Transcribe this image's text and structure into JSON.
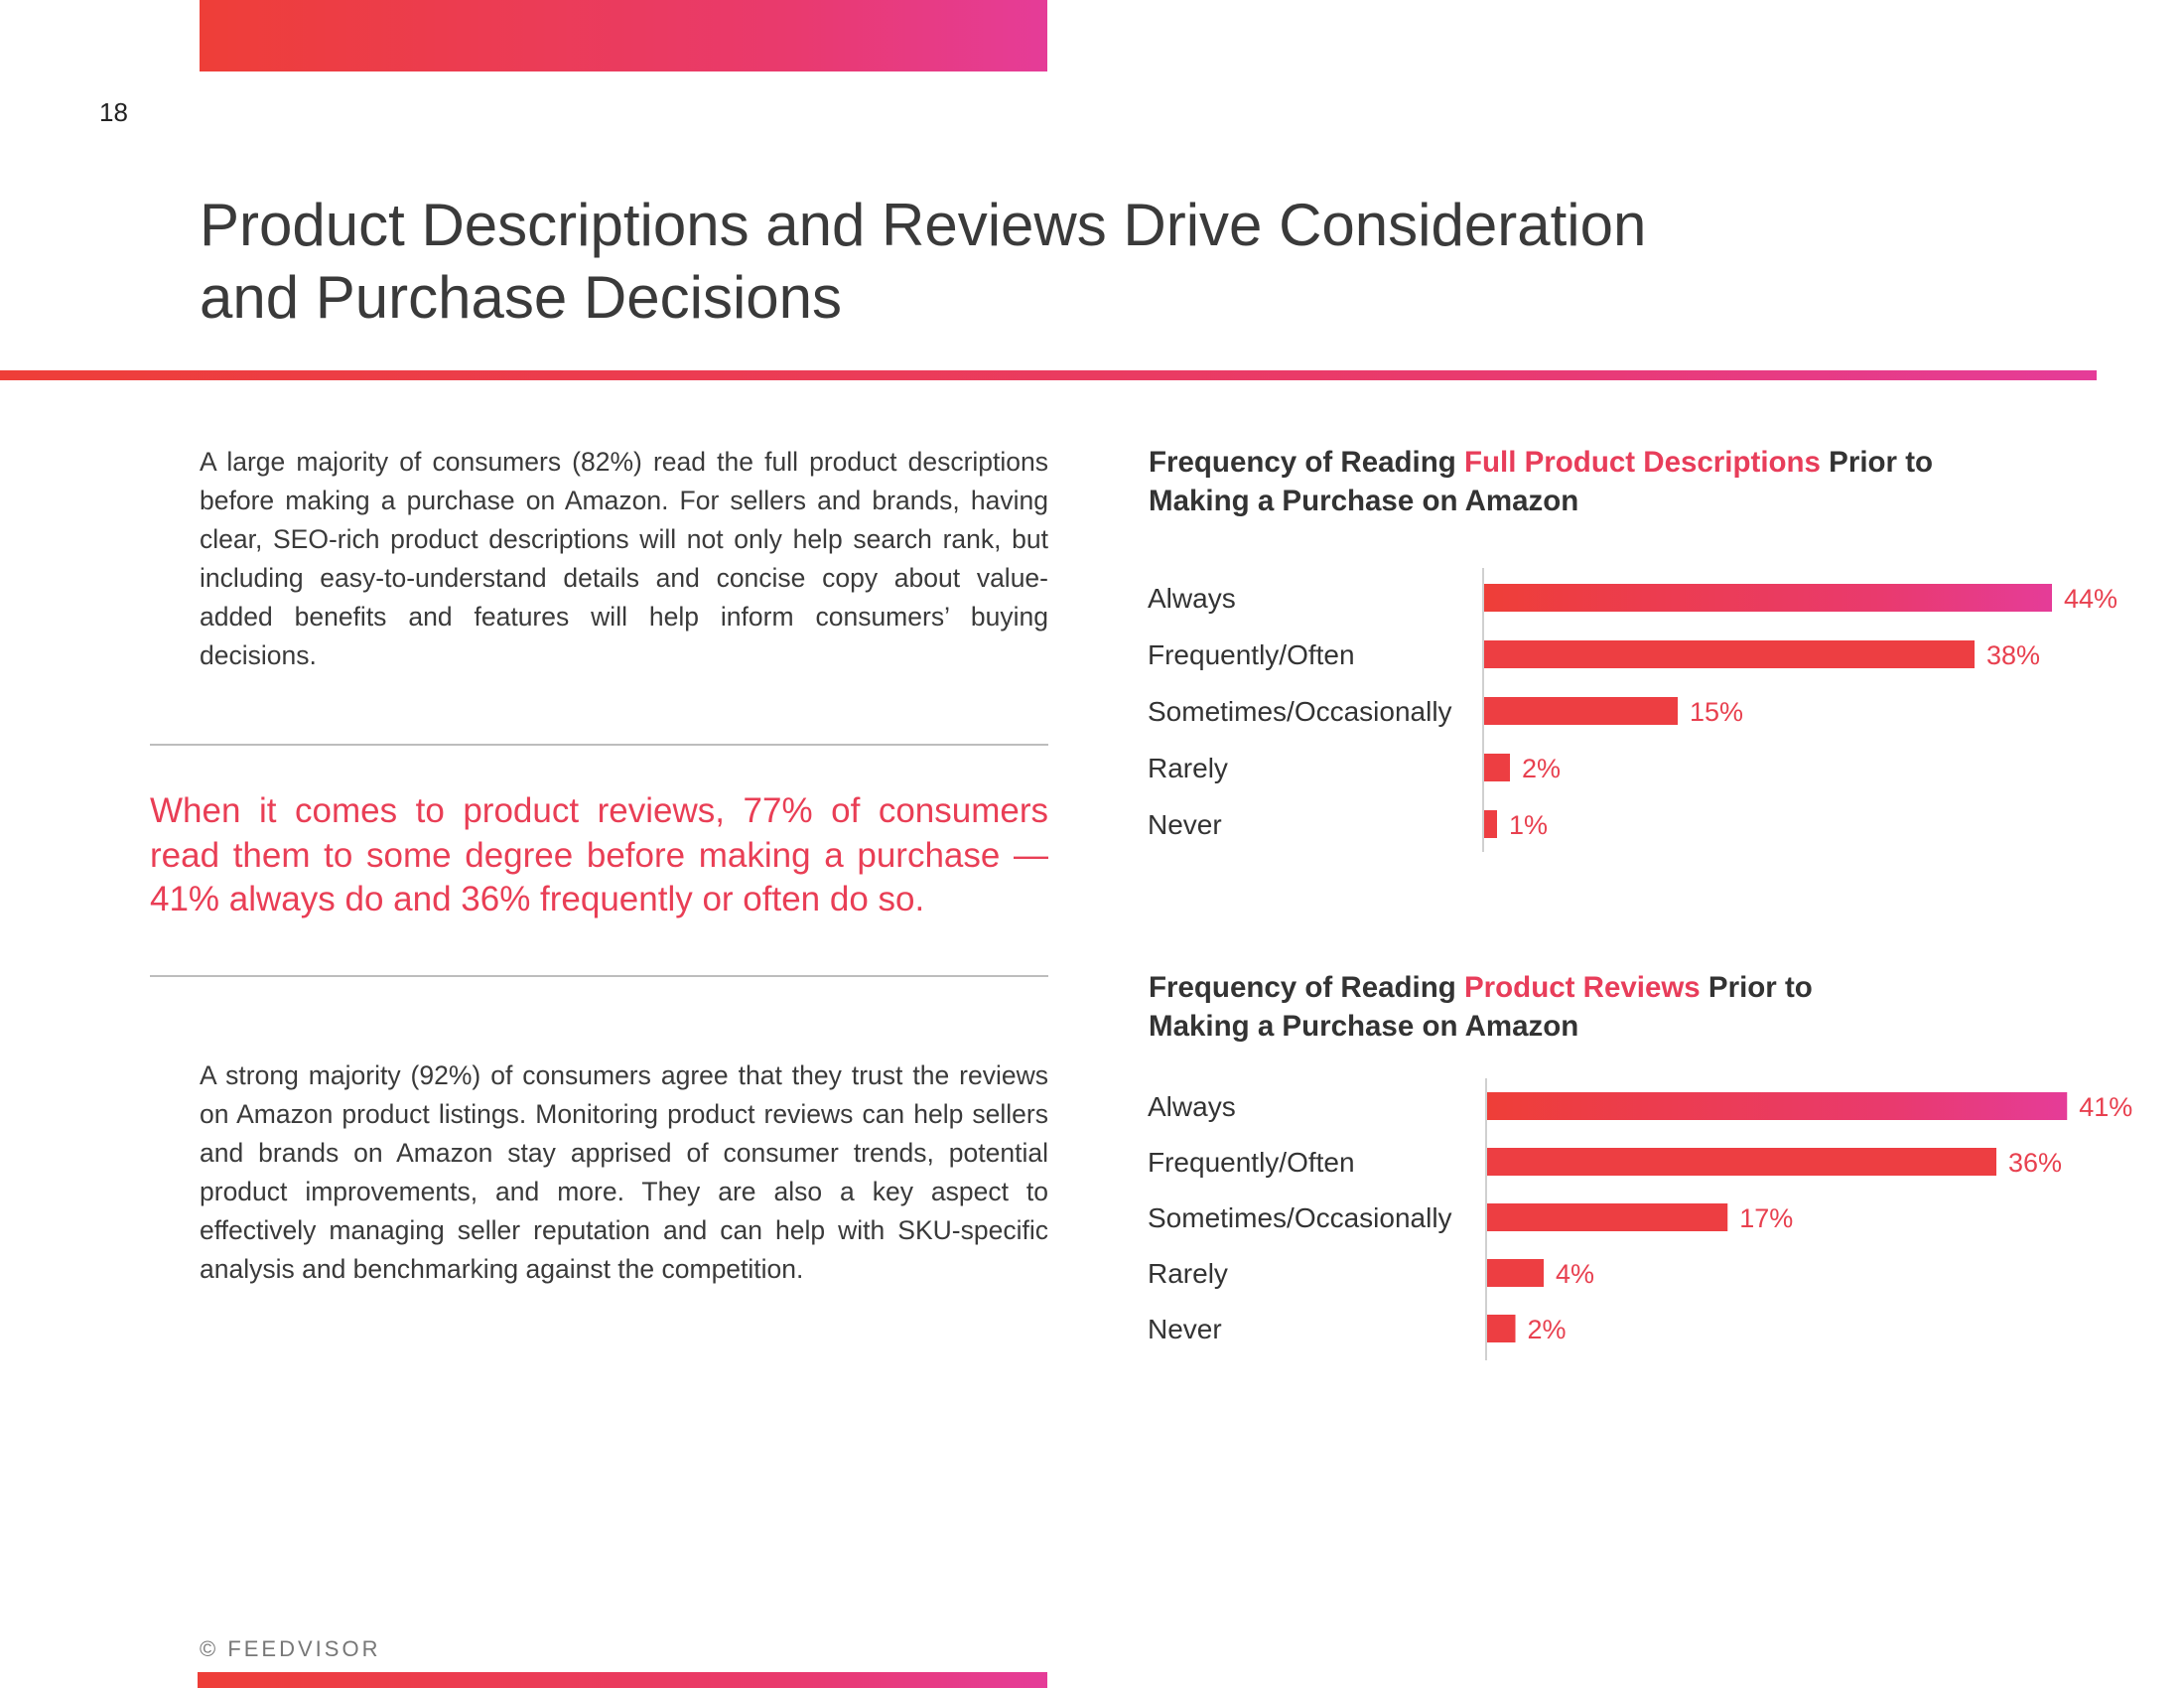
{
  "page": {
    "number": "18",
    "title_line1": "Product Descriptions and Reviews Drive Consideration",
    "title_line2": "and Purchase Decisions",
    "intro": "A large majority of consumers (82%) read the full product descriptions before making a purchase on Amazon. For sellers and brands, having clear, SEO-rich product descriptions will not only help search rank, but including easy-to-understand details and concise copy about value-added benefits and features will help inform consumers’ buying decisions.",
    "pull_quote": "When it comes to product reviews, 77% of consumers read them to some degree before making a purchase — 41% always do and 36% frequently or often do so.",
    "trust": "A strong majority (92%) of consumers agree that they trust the reviews on Amazon product listings. Monitoring product reviews can help sellers and brands on Amazon stay apprised of consumer trends, potential product improvements, and more. They are also a key aspect to effectively managing seller reputation and can help with SKU-specific analysis and benchmarking against the competition.",
    "footer": "© FEEDVISOR"
  },
  "colors": {
    "gradient_start": "#ee3e38",
    "gradient_end": "#e53c98",
    "highlight": "#e83d5a",
    "value_label": "#e8404f"
  },
  "chart_data": [
    {
      "type": "bar",
      "orientation": "horizontal",
      "title_pre": "Frequency of Reading ",
      "title_highlight": "Full Product Descriptions",
      "title_post": " Prior to",
      "title_line2": "Making a Purchase on Amazon",
      "categories": [
        "Always",
        "Frequently/Often",
        "Sometimes/Occasionally",
        "Rarely",
        "Never"
      ],
      "values": [
        44,
        38,
        15,
        2,
        1
      ],
      "value_labels": [
        "44%",
        "38%",
        "15%",
        "2%",
        "1%"
      ],
      "unit": "%"
    },
    {
      "type": "bar",
      "orientation": "horizontal",
      "title_pre": "Frequency of Reading ",
      "title_highlight": "Product Reviews",
      "title_post": " Prior to",
      "title_line2": "Making a Purchase on Amazon",
      "categories": [
        "Always",
        "Frequently/Often",
        "Sometimes/Occasionally",
        "Rarely",
        "Never"
      ],
      "values": [
        41,
        36,
        17,
        4,
        2
      ],
      "value_labels": [
        "41%",
        "36%",
        "17%",
        "4%",
        "2%"
      ],
      "unit": "%"
    }
  ]
}
